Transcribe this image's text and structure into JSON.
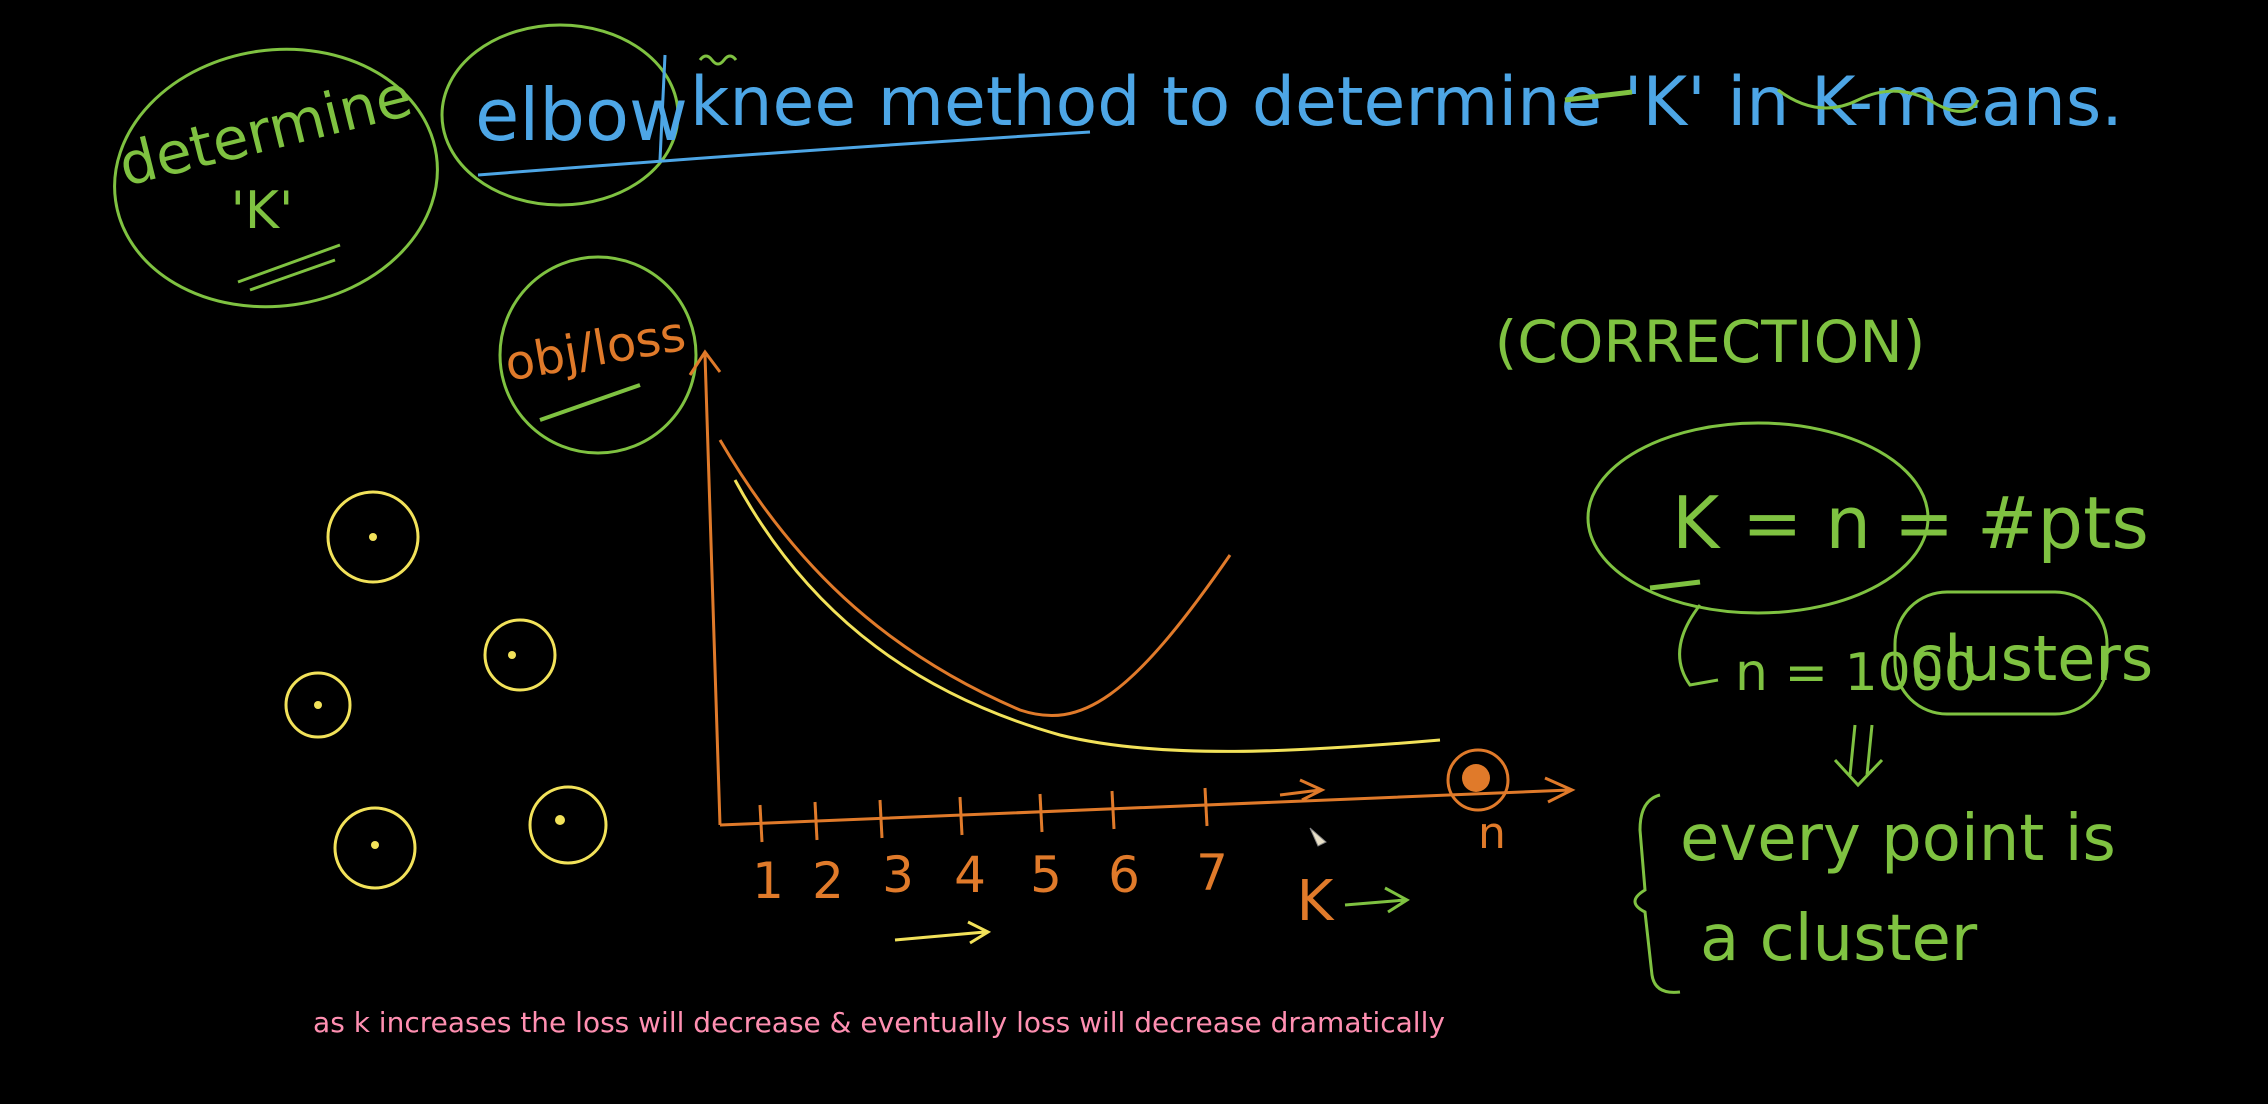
{
  "colors": {
    "background": "#000000",
    "green": "#7fc241",
    "blue": "#4da6e6",
    "orange": "#e07a2a",
    "yellow": "#f2e25a",
    "pink": "#ff8fb1"
  },
  "header": {
    "determine_k_note": [
      "determine",
      "'K'"
    ],
    "elbow": "elbow",
    "rest_title": "knee method to determine 'K' in K-means."
  },
  "graph": {
    "y_axis_label": "obj/loss",
    "x_ticks": [
      "1",
      "2",
      "3",
      "4",
      "5",
      "6",
      "7"
    ],
    "x_axis_label": "K",
    "n_marker": "n"
  },
  "correction": {
    "title": "(CORRECTION)",
    "equation": "K = n = #pts",
    "n_value": "n = 1000",
    "clusters": "clusters",
    "conclusion": [
      "every point is",
      "a cluster"
    ]
  },
  "caption": "as k increases the loss will decrease & eventually loss will decrease dramatically"
}
